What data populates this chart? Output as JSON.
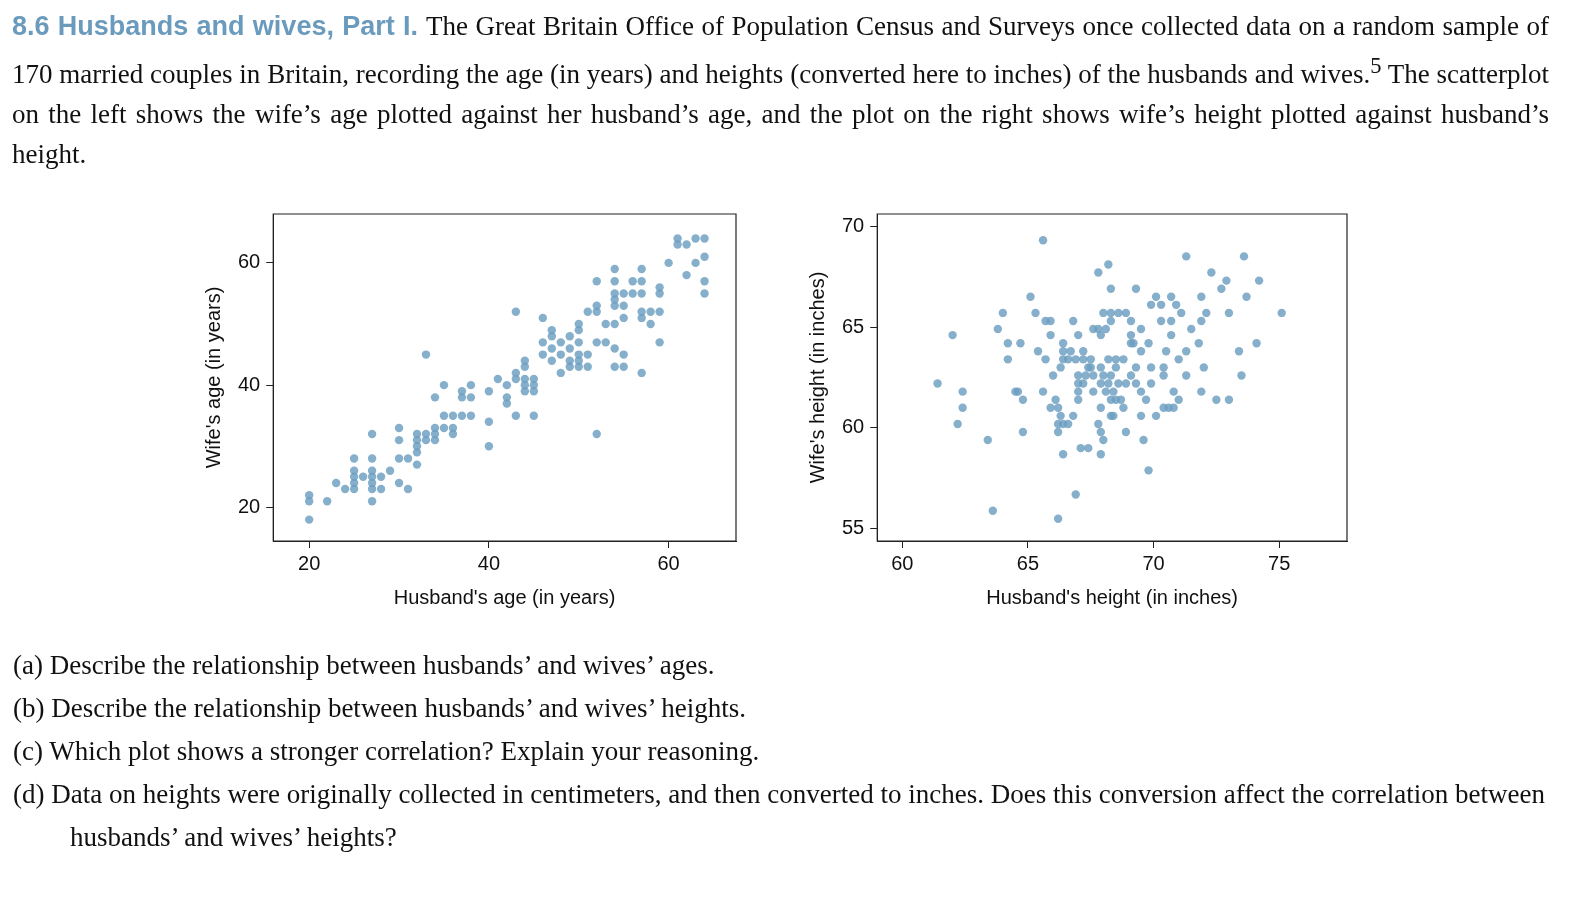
{
  "chart_data": [
    {
      "type": "scatter",
      "title": "8.6 Husbands and wives, Part I.",
      "subtitle": "The Great Britain Office of Population Census and Surveys once collected data on a random sample of 170 married couples in Britain, recording the age (in years) and heights (converted here to inches) of the husbands and wives.$^{5}$ The scatterplot on the left shows the wife’s age plotted against her husband’s age, and the plot on the right shows wife’s height plotted against husband’s height.",
      "xlabel": "Husband's age (in years)",
      "ylabel": "Wife's age (in years)",
      "xlim": [
        16,
        67.5
      ],
      "ylim": [
        14.5,
        68
      ],
      "xticks": [
        20,
        40,
        60
      ],
      "yticks": [
        20,
        40,
        60
      ],
      "grid": false,
      "legend": false,
      "marker": "circle",
      "annotations": [
        "(a) Describe the relationship between husbands’ and wives’ ages.",
        "(b) Describe the relationship between husbands’ and wives’ heights.",
        "(c) Which plot shows a stronger correlation? Explain your reasoning.",
        "(d) Data on heights were originally collected in centimeters, and then converted to inches. Does this conversion affect the correlation between husbands’ and wives’ heights?"
      ],
      "series": [
        {
          "color": "#6b9dc0",
          "x": [
            20,
            20,
            20,
            22,
            23,
            24,
            25,
            25,
            25,
            25,
            25,
            26,
            27,
            27,
            27,
            27,
            27,
            27,
            27,
            28,
            28,
            29,
            30,
            30,
            30,
            30,
            31,
            31,
            32,
            32,
            32,
            32,
            32,
            33,
            33,
            33,
            34,
            34,
            34,
            34,
            35,
            35,
            35,
            36,
            36,
            36,
            37,
            37,
            37,
            38,
            38,
            38,
            40,
            40,
            40,
            41,
            42,
            42,
            42,
            43,
            43,
            43,
            43,
            44,
            44,
            44,
            44,
            44,
            45,
            45,
            45,
            45,
            46,
            46,
            46,
            47,
            47,
            47,
            47,
            48,
            48,
            48,
            49,
            49,
            49,
            49,
            50,
            50,
            50,
            50,
            50,
            50,
            51,
            51,
            51,
            52,
            52,
            52,
            52,
            52,
            53,
            53,
            54,
            54,
            54,
            54,
            54,
            54,
            54,
            54,
            55,
            55,
            55,
            55,
            55,
            56,
            56,
            57,
            57,
            57,
            57,
            57,
            57,
            58,
            58,
            59,
            59,
            59,
            59,
            60,
            61,
            61,
            62,
            62,
            63,
            63,
            64,
            64,
            64,
            64
          ],
          "values": [
            18,
            21,
            22,
            21,
            24,
            23,
            23,
            24,
            25,
            26,
            28,
            25,
            21,
            23,
            24,
            25,
            26,
            28,
            32,
            23,
            25,
            26,
            24,
            28,
            31,
            33,
            23,
            28,
            27,
            29,
            30,
            31,
            32,
            31,
            32,
            45,
            31,
            32,
            33,
            38,
            33,
            35,
            40,
            32,
            33,
            35,
            35,
            38,
            39,
            35,
            38,
            40,
            30,
            34,
            39,
            41,
            37,
            38,
            40,
            35,
            41,
            42,
            52,
            39,
            40,
            41,
            43,
            44,
            35,
            39,
            40,
            41,
            45,
            47,
            51,
            44,
            46,
            48,
            49,
            42,
            45,
            47,
            43,
            44,
            46,
            48,
            43,
            44,
            45,
            47,
            49,
            50,
            43,
            45,
            52,
            32,
            47,
            52,
            53,
            57,
            47,
            50,
            43,
            46,
            50,
            53,
            54,
            55,
            57,
            59,
            43,
            45,
            51,
            53,
            55,
            55,
            57,
            42,
            51,
            52,
            55,
            57,
            59,
            50,
            52,
            47,
            52,
            55,
            56,
            60,
            63,
            64,
            58,
            63,
            60,
            64,
            55,
            57,
            61,
            64
          ]
        }
      ]
    },
    {
      "type": "scatter",
      "xlabel": "Husband's height (in inches)",
      "ylabel": "Wife's height (in inches)",
      "xlim": [
        59,
        77.7
      ],
      "ylim": [
        54.4,
        70.6
      ],
      "xticks": [
        60,
        65,
        70,
        75
      ],
      "yticks": [
        55,
        60,
        65,
        70
      ],
      "grid": false,
      "legend": false,
      "marker": "circle",
      "series": [
        {
          "color": "#6b9dc0",
          "x": [
            65.6,
            68.2,
            67.8,
            68.3,
            65.1,
            64.0,
            65.3,
            68.0,
            68.3,
            65.7,
            65.9,
            66.8,
            68.3,
            63.8,
            62.0,
            65.9,
            67.0,
            67.6,
            67.8,
            68.1,
            67.9,
            64.2,
            64.7,
            65.4,
            66.4,
            66.4,
            66.7,
            67.2,
            64.2,
            65.7,
            66.4,
            66.6,
            66.9,
            67.2,
            67.5,
            68.2,
            66.3,
            67.4,
            67.5,
            67.9,
            66.0,
            67.0,
            67.3,
            67.6,
            68.0,
            68.3,
            67.0,
            67.2,
            67.9,
            68.2,
            61.4,
            62.4,
            64.5,
            64.6,
            65.6,
            67.0,
            67.6,
            68.1,
            64.8,
            66.1,
            67.0,
            62.4,
            65.9,
            66.2,
            67.9,
            66.3,
            66.8,
            62.2,
            66.2,
            66.4,
            66.6,
            67.8,
            66.2,
            64.8,
            67.9,
            68.0,
            63.4,
            67.1,
            67.4,
            66.4,
            67.9,
            66.9,
            63.6,
            66.2,
            68.3,
            68.3,
            71.3,
            73.6,
            72.3,
            72.9,
            74.2,
            69.3,
            72.7,
            70.1,
            70.7,
            71.9,
            73.7,
            69.9,
            70.3,
            70.9,
            68.6,
            68.9,
            71.1,
            72.1,
            73.0,
            75.1,
            69.1,
            70.3,
            70.7,
            71.9,
            69.5,
            71.5,
            69.1,
            70.7,
            69.1,
            69.2,
            69.8,
            71.8,
            74.1,
            69.5,
            70.5,
            71.3,
            73.4,
            68.5,
            68.8,
            71.0,
            68.5,
            69.3,
            69.9,
            70.4,
            72.0,
            69.1,
            70.4,
            71.3,
            73.5,
            68.6,
            68.9,
            69.3,
            69.9,
            68.4,
            69.5,
            70.8,
            71.9,
            68.5,
            68.7,
            69.7,
            71.0,
            72.5,
            73.0,
            68.8,
            70.4,
            70.6,
            70.8,
            68.4,
            69.5,
            70.1,
            68.9,
            69.6,
            69.8
          ],
          "values": [
            69.3,
            68.1,
            67.7,
            66.9,
            66.5,
            65.7,
            65.7,
            65.7,
            65.7,
            65.3,
            65.3,
            65.3,
            65.3,
            64.9,
            64.6,
            64.6,
            64.6,
            64.9,
            64.9,
            64.9,
            64.6,
            64.2,
            64.2,
            63.8,
            64.2,
            63.8,
            63.8,
            63.8,
            63.4,
            63.4,
            63.4,
            63.4,
            63.4,
            63.4,
            63.4,
            63.4,
            63.0,
            63.0,
            63.0,
            63.0,
            62.6,
            62.6,
            62.6,
            62.6,
            62.6,
            62.6,
            62.2,
            62.2,
            62.2,
            62.2,
            62.2,
            61.8,
            61.8,
            61.8,
            61.8,
            61.8,
            61.8,
            61.8,
            61.4,
            61.4,
            61.4,
            61.0,
            61.0,
            61.0,
            61.0,
            60.6,
            60.6,
            60.2,
            60.2,
            60.2,
            60.2,
            60.2,
            59.8,
            59.8,
            59.8,
            59.4,
            59.4,
            59.0,
            59.0,
            58.7,
            58.7,
            56.7,
            55.9,
            55.5,
            61.4,
            60.6,
            68.5,
            68.5,
            67.7,
            67.3,
            67.3,
            66.9,
            66.9,
            66.5,
            66.5,
            66.5,
            66.5,
            66.1,
            66.1,
            66.1,
            65.7,
            65.7,
            65.7,
            65.7,
            65.7,
            65.7,
            65.3,
            65.3,
            65.3,
            65.3,
            64.9,
            64.9,
            64.6,
            64.6,
            64.2,
            64.2,
            64.2,
            64.2,
            64.2,
            63.8,
            63.8,
            63.8,
            63.8,
            63.4,
            63.4,
            63.4,
            63.0,
            63.0,
            63.0,
            63.0,
            63.0,
            62.6,
            62.6,
            62.6,
            62.6,
            62.2,
            62.2,
            62.2,
            62.2,
            61.8,
            61.8,
            61.8,
            61.8,
            61.4,
            61.4,
            61.4,
            61.4,
            61.4,
            61.4,
            61.0,
            61.0,
            61.0,
            61.0,
            60.6,
            60.6,
            60.6,
            59.8,
            59.4,
            57.9
          ]
        }
      ]
    }
  ]
}
